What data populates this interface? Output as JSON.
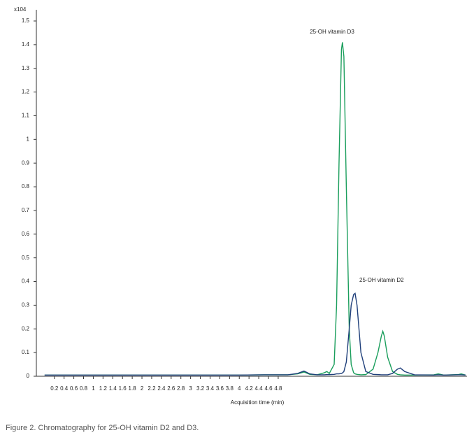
{
  "chart_data": {
    "type": "line",
    "y_multiplier": "x104",
    "x_label": "Acquisition time (min)",
    "caption": "Figure 2. Chromatography for 25-OH vitamin D2 and D3.",
    "annotations": [
      "25-OH vitamin D3",
      "25-OH vitamin D2"
    ],
    "x": [
      0,
      1,
      2,
      3,
      4,
      4.5,
      5.0,
      5.2,
      5.33,
      5.45,
      5.6,
      5.75,
      5.8,
      5.85,
      5.95,
      6.0,
      6.05,
      6.1,
      6.12,
      6.15,
      6.2,
      6.26,
      6.3,
      6.35,
      6.38,
      6.42,
      6.5,
      6.6,
      6.75,
      6.85,
      6.92,
      6.95,
      6.98,
      7.05,
      7.15,
      7.25,
      7.31,
      7.4,
      7.6,
      8.0,
      8.09,
      8.2,
      8.5,
      8.56,
      8.65
    ],
    "series": [
      {
        "name": "25-OH vitamin D3",
        "color": "#1a9e5c",
        "values": [
          0.005,
          0.005,
          0.005,
          0.005,
          0.005,
          0.006,
          0.006,
          0.01,
          0.018,
          0.008,
          0.006,
          0.015,
          0.02,
          0.012,
          0.05,
          0.3,
          0.9,
          1.38,
          1.41,
          1.35,
          0.8,
          0.2,
          0.05,
          0.015,
          0.01,
          0.008,
          0.006,
          0.007,
          0.03,
          0.1,
          0.17,
          0.19,
          0.17,
          0.08,
          0.02,
          0.008,
          0.006,
          0.005,
          0.005,
          0.006,
          0.01,
          0.005,
          0.007,
          0.01,
          0.005
        ]
      },
      {
        "name": "25-OH vitamin D2",
        "color": "#1f3f7a",
        "values": [
          0.005,
          0.005,
          0.005,
          0.005,
          0.005,
          0.006,
          0.006,
          0.012,
          0.022,
          0.01,
          0.006,
          0.006,
          0.007,
          0.007,
          0.008,
          0.01,
          0.01,
          0.012,
          0.014,
          0.02,
          0.06,
          0.2,
          0.3,
          0.345,
          0.35,
          0.3,
          0.1,
          0.02,
          0.008,
          0.007,
          0.006,
          0.006,
          0.006,
          0.006,
          0.012,
          0.03,
          0.035,
          0.02,
          0.006,
          0.005,
          0.006,
          0.005,
          0.006,
          0.006,
          0.005
        ]
      }
    ],
    "xlim": [
      -0.17,
      8.68
    ],
    "xticks": [
      0.2,
      0.4,
      0.6,
      0.8,
      1,
      1.2,
      1.4,
      1.6,
      1.8,
      2,
      2.2,
      2.4,
      2.6,
      2.8,
      3,
      3.2,
      3.4,
      3.6,
      3.8,
      4,
      4.2,
      4.4,
      4.6,
      4.8
    ],
    "ylim": [
      0,
      1.5
    ],
    "yticks": [
      0,
      0.1,
      0.2,
      0.3,
      0.4,
      0.5,
      0.6,
      0.7,
      0.8,
      0.9,
      1,
      1.1,
      1.2,
      1.3,
      1.4,
      1.5
    ]
  }
}
